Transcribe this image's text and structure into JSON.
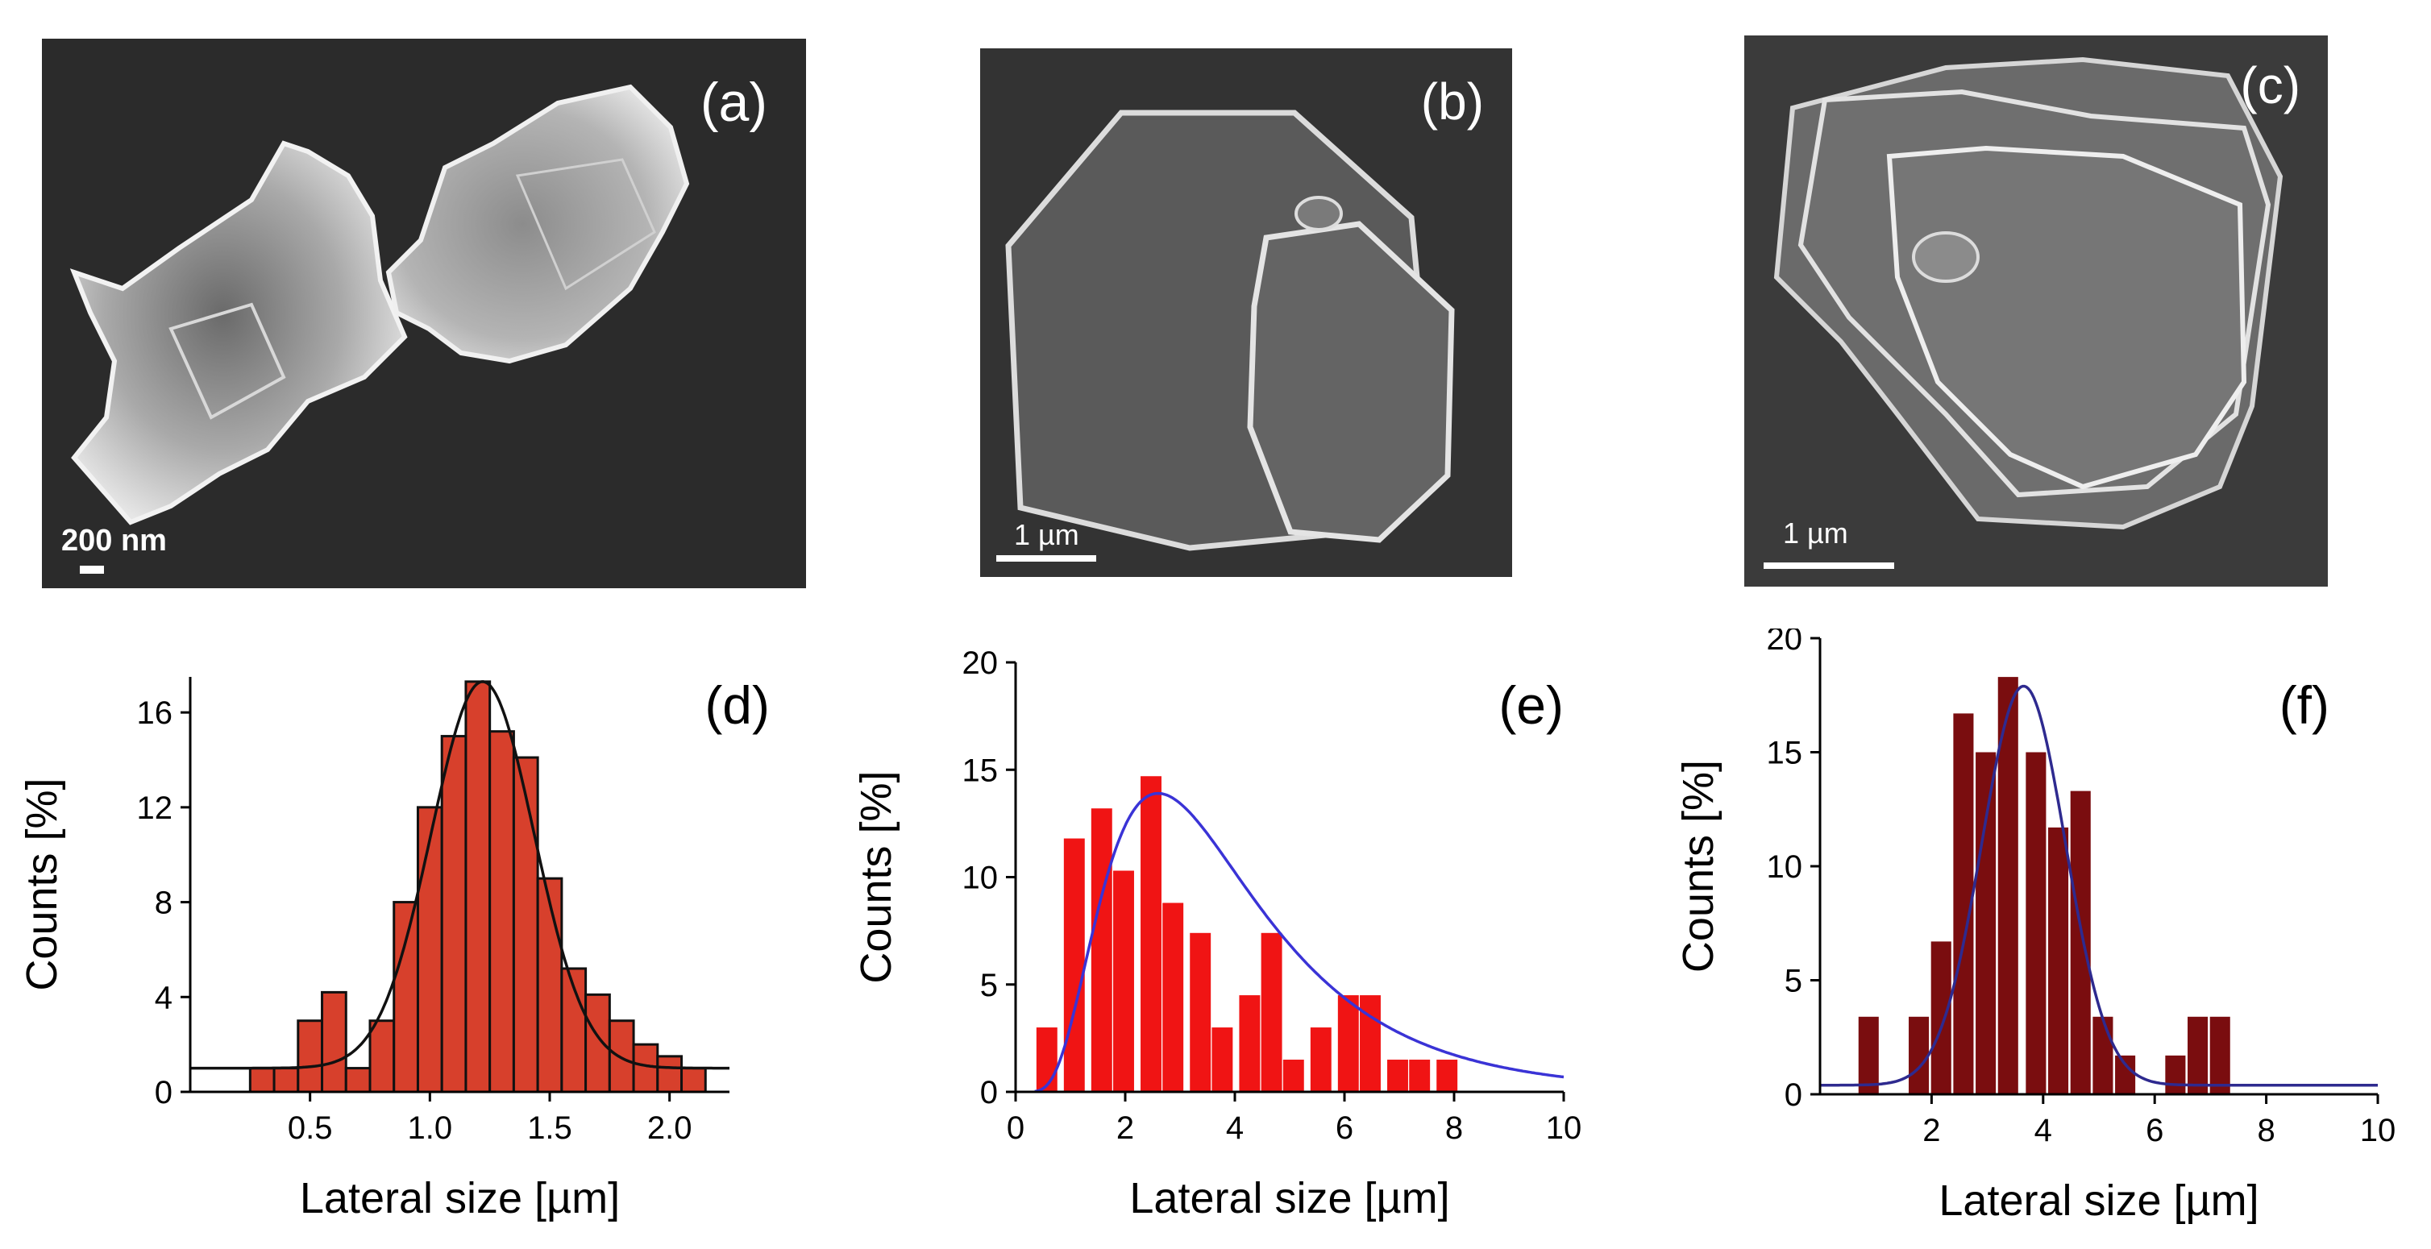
{
  "sem_panels": [
    {
      "label": "(a)",
      "scalebar": "200 nm"
    },
    {
      "label": "(b)",
      "scalebar": "1 µm"
    },
    {
      "label": "(c)",
      "scalebar": "1 µm"
    }
  ],
  "colors": {
    "bar_d": "#d7402c",
    "bar_e": "#f01414",
    "bar_f": "#7a0d0f",
    "fit_d": "#111111",
    "fit_e": "#3a33d6",
    "fit_f": "#2e2a8f"
  },
  "chart_data": [
    {
      "id": "d",
      "panel_label": "(d)",
      "type": "bar",
      "xlabel": "Lateral size [µm]",
      "ylabel": "Counts [%]",
      "xlim": [
        0,
        2.25
      ],
      "ylim": [
        0,
        17.5
      ],
      "xticks": [
        "0.5",
        "1.0",
        "1.5",
        "2.0"
      ],
      "xtick_values": [
        0.5,
        1.0,
        1.5,
        2.0
      ],
      "yticks": [
        "0",
        "4",
        "8",
        "12",
        "16"
      ],
      "ytick_values": [
        0,
        4,
        8,
        12,
        16
      ],
      "bin_width": 0.1,
      "x": [
        0.3,
        0.4,
        0.5,
        0.6,
        0.7,
        0.8,
        0.9,
        1.0,
        1.1,
        1.2,
        1.3,
        1.4,
        1.5,
        1.6,
        1.7,
        1.8,
        1.9,
        2.0,
        2.1
      ],
      "values": [
        1.0,
        1.0,
        3.0,
        4.2,
        1.0,
        3.0,
        8.0,
        12.0,
        15.0,
        17.3,
        15.2,
        14.1,
        9.0,
        5.2,
        4.1,
        3.0,
        2.0,
        1.5,
        1.0
      ],
      "fit": {
        "type": "gaussian",
        "baseline": 1.0,
        "amplitude": 16.3,
        "center": 1.22,
        "sigma": 0.215
      },
      "fit_x_range": [
        0.0,
        2.25
      ],
      "bar_edge": true
    },
    {
      "id": "e",
      "panel_label": "(e)",
      "type": "bar",
      "xlabel": "Lateral size [µm]",
      "ylabel": "Counts [%]",
      "xlim": [
        0,
        10
      ],
      "ylim": [
        0,
        20
      ],
      "xticks": [
        "0",
        "2",
        "4",
        "6",
        "8",
        "10"
      ],
      "xtick_values": [
        0,
        2,
        4,
        6,
        8,
        10
      ],
      "yticks": [
        "0",
        "5",
        "10",
        "15",
        "20"
      ],
      "ytick_values": [
        0,
        5,
        10,
        15,
        20
      ],
      "bin_width": 0.44,
      "x": [
        0.6,
        1.1,
        1.6,
        2.0,
        2.5,
        2.9,
        3.4,
        3.8,
        4.3,
        4.7,
        5.1,
        5.6,
        6.1,
        6.5,
        7.0,
        7.4,
        7.9
      ],
      "values": [
        3.0,
        11.8,
        13.2,
        10.3,
        14.7,
        8.8,
        7.4,
        3.0,
        4.5,
        7.4,
        1.5,
        3.0,
        4.5,
        4.5,
        1.5,
        1.5,
        1.5
      ],
      "fit": {
        "type": "lognormal",
        "amplitude": 13.9,
        "mode": 2.6,
        "sigma": 0.55
      },
      "fit_x_range": [
        0.35,
        10.0
      ],
      "bar_edge": false
    },
    {
      "id": "f",
      "panel_label": "(f)",
      "type": "bar",
      "xlabel": "Lateral size [µm]",
      "ylabel": "Counts [%]",
      "xlim": [
        0,
        10
      ],
      "ylim": [
        0,
        20
      ],
      "xticks": [
        "2",
        "4",
        "6",
        "8",
        "10"
      ],
      "xtick_values": [
        2,
        4,
        6,
        8,
        10
      ],
      "yticks": [
        "0",
        "5",
        "10",
        "15",
        "20"
      ],
      "ytick_values": [
        0,
        5,
        10,
        15,
        20
      ],
      "bin_width": 0.42,
      "x": [
        0.9,
        1.8,
        2.2,
        2.6,
        3.0,
        3.4,
        3.9,
        4.3,
        4.7,
        5.1,
        5.5,
        6.4,
        6.8,
        7.2,
        7.6
      ],
      "values": [
        3.4,
        3.4,
        6.7,
        16.7,
        15.0,
        18.3,
        15.0,
        11.7,
        13.3,
        3.4,
        1.7,
        1.7,
        3.4,
        3.4,
        0
      ],
      "fit": {
        "type": "gaussian",
        "baseline": 0.4,
        "amplitude": 17.5,
        "center": 3.65,
        "sigma": 0.75
      },
      "fit_x_range": [
        0.0,
        10.0
      ],
      "bar_edge": false
    }
  ]
}
